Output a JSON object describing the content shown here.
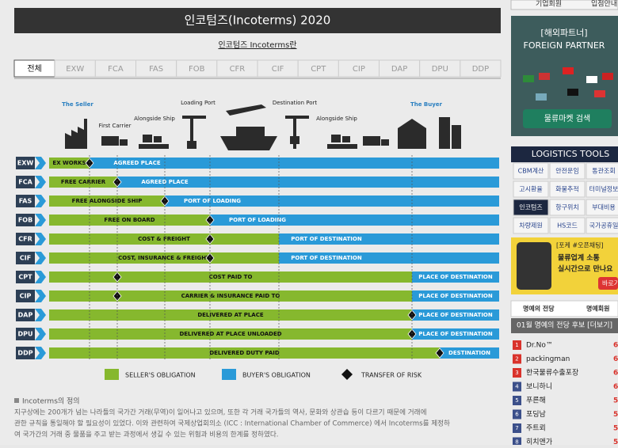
{
  "header": {
    "title": "인코텀즈(Incoterms) 2020",
    "link": "인코텀즈 Incoterms란"
  },
  "tabs": [
    "전체",
    "EXW",
    "FCA",
    "FAS",
    "FOB",
    "CFR",
    "CIF",
    "CPT",
    "CIP",
    "DAP",
    "DPU",
    "DDP"
  ],
  "diagram": {
    "stages": [
      "The Seller",
      "First Carrier",
      "Alongside Ship",
      "Loading Port",
      "Destination Port",
      "Alongside Ship",
      "The Buyer"
    ],
    "rows": [
      {
        "code": "EXW",
        "seller": "EX WORKS",
        "buyer": "AGREED PLACE"
      },
      {
        "code": "FCA",
        "seller": "FREE CARRIER",
        "buyer": "AGREED PLACE"
      },
      {
        "code": "FAS",
        "seller": "FREE ALONGSIDE SHIP",
        "buyer": "PORT OF LOADING"
      },
      {
        "code": "FOB",
        "seller": "FREE ON BOARD",
        "buyer": "PORT OF LOADING"
      },
      {
        "code": "CFR",
        "seller": "COST & FREIGHT",
        "buyer": "PORT OF DESTINATION"
      },
      {
        "code": "CIF",
        "seller": "COST, INSURANCE & FREIGHT",
        "buyer": "PORT OF DESTINATION"
      },
      {
        "code": "CPT",
        "seller": "COST PAID TO",
        "buyer": "PLACE OF DESTINATION"
      },
      {
        "code": "CIP",
        "seller": "CARRIER & INSURANCE PAID TO",
        "buyer": "PLACE OF DESTINATION"
      },
      {
        "code": "DAP",
        "seller": "DELIVERED AT PLACE",
        "buyer": "PLACE OF DESTINATION"
      },
      {
        "code": "DPU",
        "seller": "DELIVERED AT PLACE UNLOADED",
        "buyer": "PLACE OF DESTINATION"
      },
      {
        "code": "DDP",
        "seller": "DELIVERED DUTY PAID",
        "buyer": "DESTINATION"
      }
    ],
    "legend": [
      "SELLER'S OBLIGATION",
      "BUYER'S OBLIGATION",
      "TRANSFER OF RISK"
    ]
  },
  "definition": {
    "title": "Incoterms의 정의",
    "lines": [
      "지구상에는 200개가 넘는 나라들의 국가간 거래(무역)이 일어나고 있으며, 또한 각 거래 국가들의 역사, 문화와 상관습 등이 다르기 때문에 거래에",
      "관한 규칙을 통일해야 할 필요성이 있었다. 이와 관련하여 국제상업회의소 (ICC : International Chamber of Commerce) 에서 Incoterms를 제정하",
      "여 국가간의 거래 중 물품을 주고 받는 과정에서 생길 수 있는 위험과 비용의 한계를 정하였다."
    ]
  },
  "sidebar": {
    "top_buttons": [
      "기업회원",
      "입점안내"
    ],
    "banner": {
      "tag": "[해외파트너]",
      "title": "FOREIGN PARTNER",
      "button": "물류마켓 검색"
    },
    "tools_title": "LOGISTICS TOOLS",
    "tools": [
      [
        "CBM계산",
        "안전운임",
        "통관조회"
      ],
      [
        "고시환율",
        "화물추적",
        "터미널정보"
      ],
      [
        "인코텀즈",
        "항구위치",
        "부대비용"
      ],
      [
        "차량제원",
        "HS코드",
        "국가공휴일"
      ]
    ],
    "ad": {
      "tag": "[포케 #오픈채팅]",
      "line1": "물류업계 소통",
      "line2": "실시간으로 만나요",
      "button": "바로가기"
    },
    "honor_tabs": [
      "명예의 전당",
      "명예회원"
    ],
    "honor_header": "01월 명예의 전당 후보 [더보기]",
    "ranking": [
      {
        "rank": "1",
        "name": "Dr.No™",
        "score": "6"
      },
      {
        "rank": "2",
        "name": "packingman",
        "score": "6"
      },
      {
        "rank": "3",
        "name": "한국물류수출포장",
        "score": "6"
      },
      {
        "rank": "4",
        "name": "보니하니",
        "score": "6"
      },
      {
        "rank": "5",
        "name": "푸른해",
        "score": "5"
      },
      {
        "rank": "6",
        "name": "포딩남",
        "score": "5"
      },
      {
        "rank": "7",
        "name": "주트뢰",
        "score": "5"
      },
      {
        "rank": "8",
        "name": "히치앤가",
        "score": "5"
      }
    ]
  }
}
